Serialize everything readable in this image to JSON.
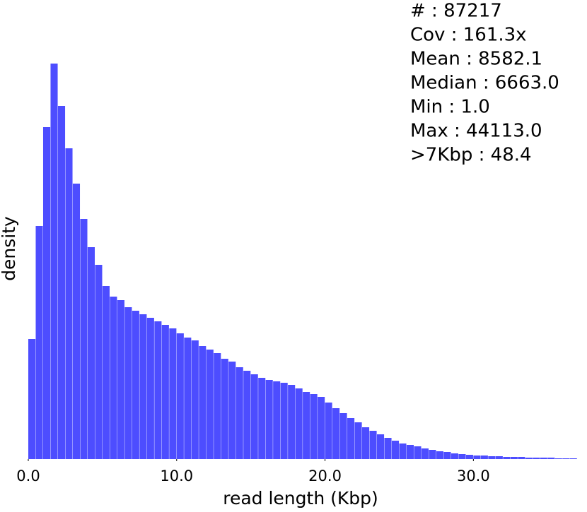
{
  "chart_data": {
    "type": "histogram",
    "x_label": "read length (Kbp)",
    "y_label": "density",
    "color": "#4d4dff",
    "bins": [
      0,
      0.5,
      1,
      1.5,
      2,
      2.5,
      3,
      3.5,
      4,
      4.5,
      5,
      5.5,
      6,
      6.5,
      7,
      7.5,
      8,
      8.5,
      9,
      9.5,
      10,
      10.5,
      11,
      11.5,
      12,
      12.5,
      13,
      13.5,
      14,
      14.5,
      15,
      15.5,
      16,
      16.5,
      17,
      17.5,
      18,
      18.5,
      19,
      19.5,
      20,
      20.5,
      21,
      21.5,
      22,
      22.5,
      23,
      23.5,
      24,
      24.5,
      25,
      25.5,
      26,
      26.5,
      27,
      27.5,
      28,
      28.5,
      29,
      29.5,
      30,
      30.5,
      31,
      31.5,
      32,
      32.5,
      33,
      33.5,
      34,
      34.5,
      35,
      35.5,
      36,
      36.5,
      37
    ],
    "values": [
      170,
      330,
      470,
      560,
      500,
      440,
      390,
      340,
      300,
      275,
      245,
      230,
      225,
      215,
      210,
      205,
      200,
      195,
      190,
      185,
      178,
      172,
      168,
      160,
      155,
      150,
      142,
      138,
      130,
      125,
      120,
      115,
      112,
      110,
      108,
      105,
      100,
      95,
      92,
      88,
      80,
      72,
      65,
      58,
      52,
      45,
      40,
      35,
      30,
      26,
      22,
      20,
      18,
      15,
      13,
      11,
      10,
      8,
      7,
      6,
      5,
      5,
      4,
      4,
      3,
      3,
      3,
      2,
      2,
      2,
      2,
      1,
      1,
      1
    ],
    "xlim": [
      0,
      36.8
    ],
    "ylim": [
      0,
      600
    ],
    "xticks": [
      {
        "value": 0,
        "label": "0.0"
      },
      {
        "value": 10,
        "label": "10.0"
      },
      {
        "value": 20,
        "label": "20.0"
      },
      {
        "value": 30,
        "label": "30.0"
      }
    ],
    "stats": [
      "# : 87217",
      "Cov : 161.3x",
      "Mean : 8582.1",
      "Median : 6663.0",
      "Min : 1.0",
      "Max : 44113.0",
      ">7Kbp : 48.4"
    ]
  }
}
